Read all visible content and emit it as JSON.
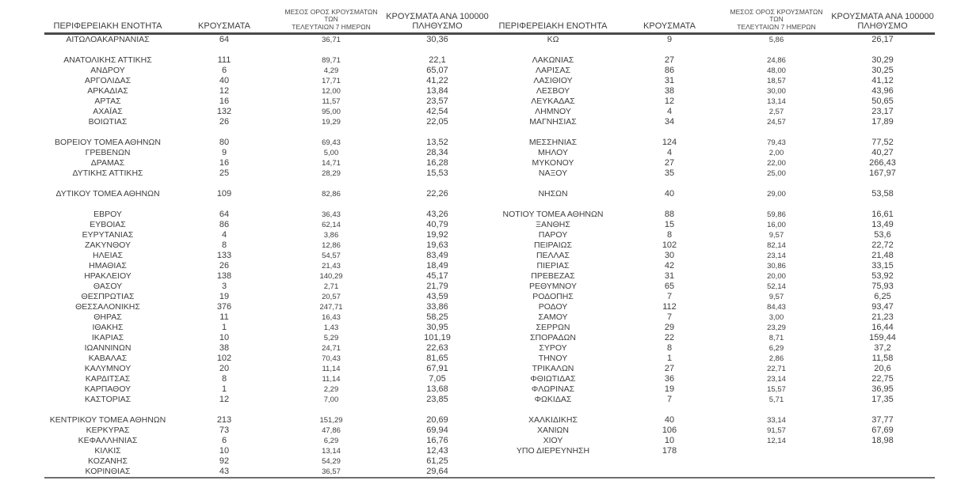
{
  "document": {
    "background": "#ffffff",
    "text_color": "#3d3d3d",
    "header_rule_color": "#4a4a4a",
    "bottom_rule_color": "#6f6f6f"
  },
  "table": {
    "headers": {
      "region": "ΠΕΡΙΦΕΡΕΙΑΚΗ ΕΝΟΤΗΤΑ",
      "cases": "ΚΡΟΥΣΜΑΤΑ",
      "avg7_line1": "ΜΕΣΟΣ ΟΡΟΣ ΚΡΟΥΣΜΑΤΩΝ ΤΩΝ",
      "avg7_line2": "ΤΕΛΕΥΤΑΙΩΝ 7 ΗΜΕΡΩΝ",
      "per100k_line1": "ΚΡΟΥΣΜΑΤΑ ΑΝΑ 100000",
      "per100k_line2": "ΠΛΗΘΥΣΜΟ"
    },
    "left_rows": [
      [
        "ΑΙΤΩΛΟΑΚΑΡΝΑΝΙΑΣ",
        "64",
        "36,71",
        "30,36"
      ],
      null,
      [
        "ΑΝΑΤΟΛΙΚΗΣ ΑΤΤΙΚΗΣ",
        "111",
        "89,71",
        "22,1"
      ],
      [
        "ΑΝΔΡΟΥ",
        "6",
        "4,29",
        "65,07"
      ],
      [
        "ΑΡΓΟΛΙΔΑΣ",
        "40",
        "17,71",
        "41,22"
      ],
      [
        "ΑΡΚΑΔΙΑΣ",
        "12",
        "12,00",
        "13,84"
      ],
      [
        "ΑΡΤΑΣ",
        "16",
        "11,57",
        "23,57"
      ],
      [
        "ΑΧΑΪΑΣ",
        "132",
        "95,00",
        "42,54"
      ],
      [
        "ΒΟΙΩΤΙΑΣ",
        "26",
        "19,29",
        "22,05"
      ],
      null,
      [
        "ΒΟΡΕΙΟΥ ΤΟΜΕΑ ΑΘΗΝΩΝ",
        "80",
        "69,43",
        "13,52"
      ],
      [
        "ΓΡΕΒΕΝΩΝ",
        "9",
        "5,00",
        "28,34"
      ],
      [
        "ΔΡΑΜΑΣ",
        "16",
        "14,71",
        "16,28"
      ],
      [
        "ΔΥΤΙΚΗΣ ΑΤΤΙΚΗΣ",
        "25",
        "28,29",
        "15,53"
      ],
      null,
      [
        "ΔΥΤΙΚΟΥ ΤΟΜΕΑ ΑΘΗΝΩΝ",
        "109",
        "82,86",
        "22,26"
      ],
      null,
      [
        "ΕΒΡΟΥ",
        "64",
        "36,43",
        "43,26"
      ],
      [
        "ΕΥΒΟΙΑΣ",
        "86",
        "62,14",
        "40,79"
      ],
      [
        "ΕΥΡΥΤΑΝΙΑΣ",
        "4",
        "3,86",
        "19,92"
      ],
      [
        "ΖΑΚΥΝΘΟΥ",
        "8",
        "12,86",
        "19,63"
      ],
      [
        "ΗΛΕΙΑΣ",
        "133",
        "54,57",
        "83,49"
      ],
      [
        "ΗΜΑΘΙΑΣ",
        "26",
        "21,43",
        "18,49"
      ],
      [
        "ΗΡΑΚΛΕΙΟΥ",
        "138",
        "140,29",
        "45,17"
      ],
      [
        "ΘΑΣΟΥ",
        "3",
        "2,71",
        "21,79"
      ],
      [
        "ΘΕΣΠΡΩΤΙΑΣ",
        "19",
        "20,57",
        "43,59"
      ],
      [
        "ΘΕΣΣΑΛΟΝΙΚΗΣ",
        "376",
        "247,71",
        "33,86"
      ],
      [
        "ΘΗΡΑΣ",
        "11",
        "16,43",
        "58,25"
      ],
      [
        "ΙΘΑΚΗΣ",
        "1",
        "1,43",
        "30,95"
      ],
      [
        "ΙΚΑΡΙΑΣ",
        "10",
        "5,29",
        "101,19"
      ],
      [
        "ΙΩΑΝΝΙΝΩΝ",
        "38",
        "24,71",
        "22,63"
      ],
      [
        "ΚΑΒΑΛΑΣ",
        "102",
        "70,43",
        "81,65"
      ],
      [
        "ΚΑΛΥΜΝΟΥ",
        "20",
        "11,14",
        "67,91"
      ],
      [
        "ΚΑΡΔΙΤΣΑΣ",
        "8",
        "11,14",
        "7,05"
      ],
      [
        "ΚΑΡΠΑΘΟΥ",
        "1",
        "2,29",
        "13,68"
      ],
      [
        "ΚΑΣΤΟΡΙΑΣ",
        "12",
        "7,00",
        "23,85"
      ],
      null,
      [
        "ΚΕΝΤΡΙΚΟΥ ΤΟΜΕΑ ΑΘΗΝΩΝ",
        "213",
        "151,29",
        "20,69"
      ],
      [
        "ΚΕΡΚΥΡΑΣ",
        "73",
        "47,86",
        "69,94"
      ],
      [
        "ΚΕΦΑΛΛΗΝΙΑΣ",
        "6",
        "6,29",
        "16,76"
      ],
      [
        "ΚΙΛΚΙΣ",
        "10",
        "13,14",
        "12,43"
      ],
      [
        "ΚΟΖΑΝΗΣ",
        "92",
        "54,29",
        "61,25"
      ],
      [
        "ΚΟΡΙΝΘΙΑΣ",
        "43",
        "36,57",
        "29,64"
      ]
    ],
    "right_rows": [
      [
        "ΚΩ",
        "9",
        "5,86",
        "26,17"
      ],
      null,
      [
        "ΛΑΚΩΝΙΑΣ",
        "27",
        "24,86",
        "30,29"
      ],
      [
        "ΛΑΡΙΣΑΣ",
        "86",
        "48,00",
        "30,25"
      ],
      [
        "ΛΑΣΙΘΙΟΥ",
        "31",
        "18,57",
        "41,12"
      ],
      [
        "ΛΕΣΒΟΥ",
        "38",
        "30,00",
        "43,96"
      ],
      [
        "ΛΕΥΚΑΔΑΣ",
        "12",
        "13,14",
        "50,65"
      ],
      [
        "ΛΗΜΝΟΥ",
        "4",
        "2,57",
        "23,17"
      ],
      [
        "ΜΑΓΝΗΣΙΑΣ",
        "34",
        "24,57",
        "17,89"
      ],
      null,
      [
        "ΜΕΣΣΗΝΙΑΣ",
        "124",
        "79,43",
        "77,52"
      ],
      [
        "ΜΗΛΟΥ",
        "4",
        "2,00",
        "40,27"
      ],
      [
        "ΜΥΚΟΝΟΥ",
        "27",
        "22,00",
        "266,43"
      ],
      [
        "ΝΑΞΟΥ",
        "35",
        "25,00",
        "167,97"
      ],
      null,
      [
        "ΝΗΣΩΝ",
        "40",
        "29,00",
        "53,58"
      ],
      null,
      [
        "ΝΟΤΙΟΥ ΤΟΜΕΑ ΑΘΗΝΩΝ",
        "88",
        "59,86",
        "16,61"
      ],
      [
        "ΞΑΝΘΗΣ",
        "15",
        "16,00",
        "13,49"
      ],
      [
        "ΠΑΡΟΥ",
        "8",
        "9,57",
        "53,6"
      ],
      [
        "ΠΕΙΡΑΙΩΣ",
        "102",
        "82,14",
        "22,72"
      ],
      [
        "ΠΕΛΛΑΣ",
        "30",
        "23,14",
        "21,48"
      ],
      [
        "ΠΙΕΡΙΑΣ",
        "42",
        "30,86",
        "33,15"
      ],
      [
        "ΠΡΕΒΕΖΑΣ",
        "31",
        "20,00",
        "53,92"
      ],
      [
        "ΡΕΘΥΜΝΟΥ",
        "65",
        "52,14",
        "75,93"
      ],
      [
        "ΡΟΔΟΠΗΣ",
        "7",
        "9,57",
        "6,25"
      ],
      [
        "ΡΟΔΟΥ",
        "112",
        "84,43",
        "93,47"
      ],
      [
        "ΣΑΜΟΥ",
        "7",
        "3,00",
        "21,23"
      ],
      [
        "ΣΕΡΡΩΝ",
        "29",
        "23,29",
        "16,44"
      ],
      [
        "ΣΠΟΡΑΔΩΝ",
        "22",
        "8,71",
        "159,44"
      ],
      [
        "ΣΥΡΟΥ",
        "8",
        "6,29",
        "37,2"
      ],
      [
        "ΤΗΝΟΥ",
        "1",
        "2,86",
        "11,58"
      ],
      [
        "ΤΡΙΚΑΛΩΝ",
        "27",
        "22,71",
        "20,6"
      ],
      [
        "ΦΘΙΩΤΙΔΑΣ",
        "36",
        "23,14",
        "22,75"
      ],
      [
        "ΦΛΩΡΙΝΑΣ",
        "19",
        "15,57",
        "36,95"
      ],
      [
        "ΦΩΚΙΔΑΣ",
        "7",
        "5,71",
        "17,35"
      ],
      null,
      [
        "ΧΑΛΚΙΔΙΚΗΣ",
        "40",
        "33,14",
        "37,77"
      ],
      [
        "ΧΑΝΙΩΝ",
        "106",
        "91,57",
        "67,69"
      ],
      [
        "ΧΙΟΥ",
        "10",
        "12,14",
        "18,98"
      ],
      [
        "ΥΠΟ ΔΙΕΡΕΥΝΗΣΗ",
        "178",
        "",
        ""
      ],
      null,
      null
    ]
  }
}
